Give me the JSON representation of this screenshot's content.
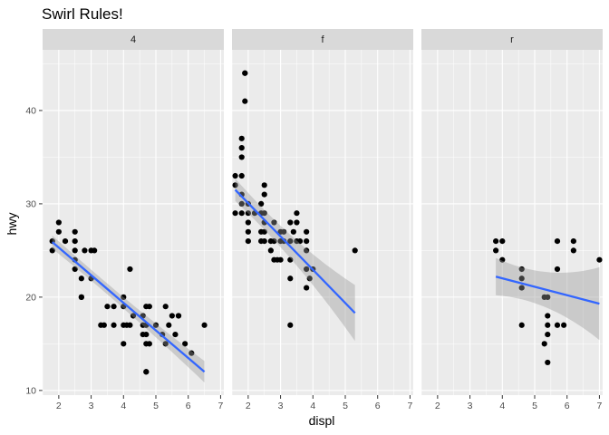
{
  "chart_data": {
    "type": "scatter",
    "title": "Swirl Rules!",
    "xlabel": "displ",
    "ylabel": "hwy",
    "facet_labels": [
      "4",
      "f",
      "r"
    ],
    "xlim": [
      1.5,
      7.1
    ],
    "ylim": [
      9.5,
      46.5
    ],
    "x_ticks": [
      "2",
      "3",
      "4",
      "5",
      "6",
      "7"
    ],
    "y_ticks": [
      "10",
      "20",
      "30",
      "40"
    ],
    "grid": true,
    "colors": {
      "panel_bg": "#ebebeb",
      "strip_bg": "#d9d9d9",
      "grid": "#ffffff",
      "point": "#000000",
      "smooth_line": "#3366ff",
      "ribbon": "#999999"
    },
    "panels": [
      {
        "facet": "4",
        "points": [
          [
            1.8,
            26
          ],
          [
            1.8,
            25
          ],
          [
            2.0,
            27
          ],
          [
            2.0,
            28
          ],
          [
            2.2,
            26
          ],
          [
            2.5,
            27
          ],
          [
            2.5,
            26
          ],
          [
            2.5,
            25
          ],
          [
            2.5,
            24
          ],
          [
            2.5,
            23
          ],
          [
            2.7,
            22
          ],
          [
            2.7,
            20
          ],
          [
            2.7,
            20
          ],
          [
            2.8,
            25
          ],
          [
            3.0,
            22
          ],
          [
            3.0,
            25
          ],
          [
            3.1,
            25
          ],
          [
            3.3,
            17
          ],
          [
            3.4,
            17
          ],
          [
            3.5,
            19
          ],
          [
            3.7,
            19
          ],
          [
            3.7,
            17
          ],
          [
            4.0,
            20
          ],
          [
            4.0,
            19
          ],
          [
            4.0,
            17
          ],
          [
            4.0,
            15
          ],
          [
            4.1,
            17
          ],
          [
            4.2,
            23
          ],
          [
            4.2,
            17
          ],
          [
            4.3,
            18
          ],
          [
            4.6,
            18
          ],
          [
            4.6,
            17
          ],
          [
            4.6,
            16
          ],
          [
            4.7,
            19
          ],
          [
            4.7,
            17
          ],
          [
            4.7,
            16
          ],
          [
            4.7,
            15
          ],
          [
            4.7,
            12
          ],
          [
            4.7,
            12
          ],
          [
            4.8,
            19
          ],
          [
            4.8,
            15
          ],
          [
            5.0,
            17
          ],
          [
            5.2,
            16
          ],
          [
            5.3,
            19
          ],
          [
            5.3,
            15
          ],
          [
            5.4,
            17
          ],
          [
            5.5,
            18
          ],
          [
            5.6,
            16
          ],
          [
            5.7,
            18
          ],
          [
            5.7,
            18
          ],
          [
            5.9,
            15
          ],
          [
            6.1,
            14
          ],
          [
            6.5,
            17
          ]
        ],
        "smooth": {
          "x": [
            1.8,
            6.5
          ],
          "y": [
            25.9,
            12.0
          ],
          "se_start": [
            25.2,
            26.6
          ],
          "se_end": [
            10.9,
            13.2
          ]
        }
      },
      {
        "facet": "f",
        "points": [
          [
            1.6,
            33
          ],
          [
            1.6,
            32
          ],
          [
            1.6,
            29
          ],
          [
            1.8,
            37
          ],
          [
            1.8,
            36
          ],
          [
            1.8,
            35
          ],
          [
            1.8,
            33
          ],
          [
            1.8,
            31
          ],
          [
            1.8,
            30
          ],
          [
            1.8,
            29
          ],
          [
            1.9,
            44
          ],
          [
            1.9,
            44
          ],
          [
            1.9,
            41
          ],
          [
            2.0,
            30
          ],
          [
            2.0,
            29
          ],
          [
            2.0,
            28
          ],
          [
            2.0,
            27
          ],
          [
            2.0,
            26
          ],
          [
            2.2,
            29
          ],
          [
            2.4,
            30
          ],
          [
            2.4,
            29
          ],
          [
            2.4,
            27
          ],
          [
            2.4,
            26
          ],
          [
            2.5,
            32
          ],
          [
            2.5,
            31
          ],
          [
            2.5,
            29
          ],
          [
            2.5,
            28
          ],
          [
            2.5,
            27
          ],
          [
            2.5,
            26
          ],
          [
            2.7,
            26
          ],
          [
            2.7,
            25
          ],
          [
            2.8,
            28
          ],
          [
            2.8,
            26
          ],
          [
            2.8,
            24
          ],
          [
            2.9,
            24
          ],
          [
            3.0,
            27
          ],
          [
            3.0,
            26
          ],
          [
            3.0,
            24
          ],
          [
            3.1,
            27
          ],
          [
            3.1,
            26
          ],
          [
            3.3,
            28
          ],
          [
            3.3,
            26
          ],
          [
            3.3,
            24
          ],
          [
            3.3,
            22
          ],
          [
            3.3,
            17
          ],
          [
            3.4,
            27
          ],
          [
            3.5,
            29
          ],
          [
            3.5,
            28
          ],
          [
            3.5,
            26
          ],
          [
            3.6,
            26
          ],
          [
            3.8,
            27
          ],
          [
            3.8,
            26
          ],
          [
            3.8,
            25
          ],
          [
            3.8,
            23
          ],
          [
            3.8,
            21
          ],
          [
            3.9,
            22
          ],
          [
            4.0,
            23
          ],
          [
            5.3,
            25
          ]
        ],
        "smooth": {
          "x": [
            1.6,
            5.3
          ],
          "y": [
            31.5,
            18.3
          ],
          "se_start": [
            30.3,
            32.7
          ],
          "se_end": [
            15.3,
            21.3
          ]
        }
      },
      {
        "facet": "r",
        "points": [
          [
            3.8,
            26
          ],
          [
            3.8,
            25
          ],
          [
            4.0,
            26
          ],
          [
            4.0,
            24
          ],
          [
            4.6,
            23
          ],
          [
            4.6,
            22
          ],
          [
            4.6,
            21
          ],
          [
            4.6,
            17
          ],
          [
            5.3,
            20
          ],
          [
            5.3,
            15
          ],
          [
            5.4,
            20
          ],
          [
            5.4,
            18
          ],
          [
            5.4,
            17
          ],
          [
            5.4,
            16
          ],
          [
            5.4,
            13
          ],
          [
            5.7,
            26
          ],
          [
            5.7,
            23
          ],
          [
            5.7,
            17
          ],
          [
            5.9,
            17
          ],
          [
            6.2,
            26
          ],
          [
            6.2,
            25
          ],
          [
            7.0,
            24
          ]
        ],
        "smooth": {
          "x": [
            3.8,
            7.0
          ],
          "y": [
            22.2,
            19.3
          ],
          "se_start": [
            20.2,
            24.2
          ],
          "se_end": [
            15.4,
            23.2
          ]
        }
      }
    ]
  }
}
